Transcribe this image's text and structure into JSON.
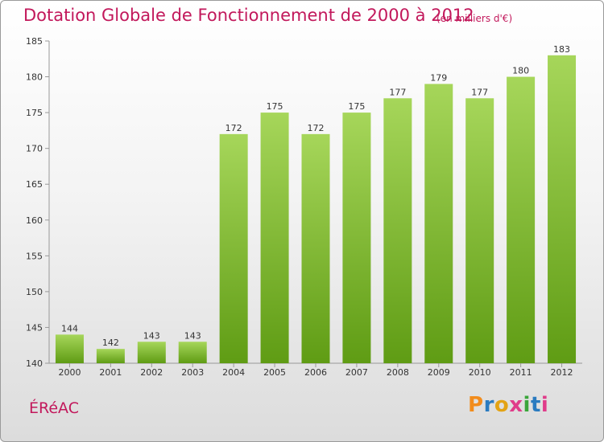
{
  "title": "Dotation Globale de Fonctionnement de 2000 à 2012",
  "subtitle": "(en milliers d'€)",
  "commune": "ÉRéAC",
  "logo": {
    "letters": [
      "P",
      "r",
      "o",
      "x",
      "i",
      "t",
      "i"
    ],
    "colors": [
      "#f28c1c",
      "#2a7bc0",
      "#e3a314",
      "#e03c8a",
      "#3aa53a",
      "#2a7bc0",
      "#e03c8a"
    ]
  },
  "colors": {
    "accent": "#c2185b",
    "bar_light": "#a6d65a",
    "bar_dark": "#5f9c14"
  },
  "chart_data": {
    "type": "bar",
    "categories": [
      "2000",
      "2001",
      "2002",
      "2003",
      "2004",
      "2005",
      "2006",
      "2007",
      "2008",
      "2009",
      "2010",
      "2011",
      "2012"
    ],
    "values": [
      144,
      142,
      143,
      143,
      172,
      175,
      172,
      175,
      177,
      179,
      177,
      180,
      183
    ],
    "ylim": [
      140,
      185
    ],
    "yticks": [
      140,
      145,
      150,
      155,
      160,
      165,
      170,
      175,
      180,
      185
    ],
    "grid": false
  }
}
